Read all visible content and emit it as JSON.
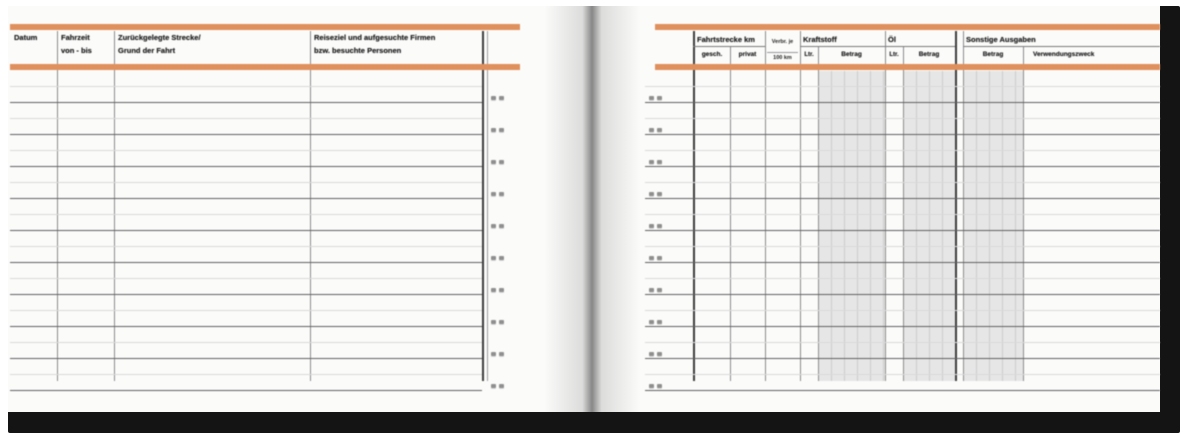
{
  "colors": {
    "accent_orange": "#E0905C",
    "cover_black": "#141414",
    "page_white": "#FBFBFA",
    "shaded_column_gray": "#E6E6E6"
  },
  "left_page": {
    "columns": [
      {
        "line1": "Datum",
        "line2": ""
      },
      {
        "line1": "Fahrzeit",
        "line2": "von - bis"
      },
      {
        "line1": "Zurückgelegte Strecke/",
        "line2": "Grund der Fahrt"
      },
      {
        "line1": "Reiseziel und aufgesuchte Firmen",
        "line2": "bzw. besuchte Personen"
      }
    ],
    "row_count": 10
  },
  "right_page": {
    "groups": {
      "distance": {
        "label": "Fahrtstrecke km",
        "sub1": "gesch.",
        "sub2": "privat"
      },
      "consumption": {
        "line1": "Verbr. je",
        "line2": "100 km"
      },
      "fuel": {
        "label": "Kraftstoff",
        "sub1": "Ltr.",
        "sub2": "Betrag"
      },
      "oil": {
        "label": "Öl",
        "sub1": "Ltr.",
        "sub2": "Betrag"
      },
      "other": {
        "label": "Sonstige Ausgaben",
        "sub1": "Betrag",
        "sub2": "Verwendungszweck"
      }
    },
    "row_count": 10
  }
}
